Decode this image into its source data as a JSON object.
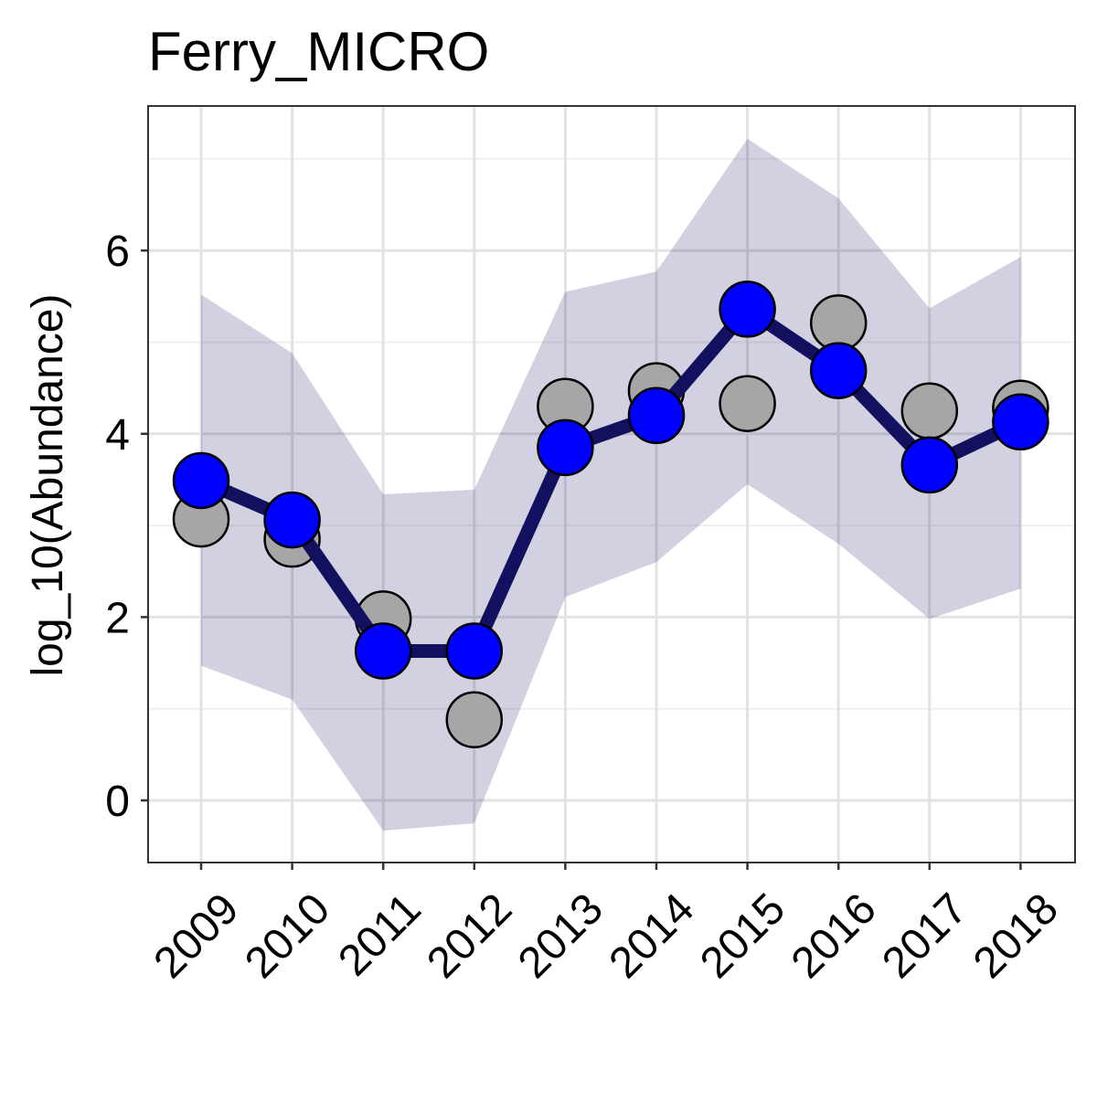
{
  "chart_data": {
    "type": "line",
    "title": "Ferry_MICRO",
    "xlabel": "",
    "ylabel": "log_10(Abundance)",
    "categories": [
      "2009",
      "2010",
      "2011",
      "2012",
      "2013",
      "2014",
      "2015",
      "2016",
      "2017",
      "2018"
    ],
    "ylim": [
      -0.68,
      7.6
    ],
    "yticks": [
      0,
      2,
      4,
      6
    ],
    "grid": true,
    "legend": "none",
    "series": [
      {
        "kind": "ribbon",
        "lower": [
          1.47,
          1.1,
          -0.33,
          -0.25,
          2.22,
          2.6,
          3.45,
          2.8,
          1.98,
          2.31
        ],
        "upper": [
          5.52,
          4.88,
          3.34,
          3.39,
          5.55,
          5.77,
          7.22,
          6.57,
          5.37,
          5.93
        ]
      },
      {
        "kind": "points",
        "values": [
          3.07,
          2.85,
          1.98,
          0.88,
          4.3,
          4.47,
          4.33,
          5.21,
          4.25,
          4.28
        ]
      },
      {
        "kind": "line",
        "values": [
          3.49,
          3.06,
          1.63,
          1.63,
          3.85,
          4.2,
          5.36,
          4.69,
          3.66,
          4.13
        ]
      }
    ],
    "colors": {
      "ribbon": "#d0d0e1",
      "line": "#13105f",
      "estimate_point": "#0000ff",
      "observed_point": "#a6a6a6",
      "panel_border": "#333333",
      "grid_major": "#e2e2e2",
      "grid_minor": "#efefef"
    }
  }
}
